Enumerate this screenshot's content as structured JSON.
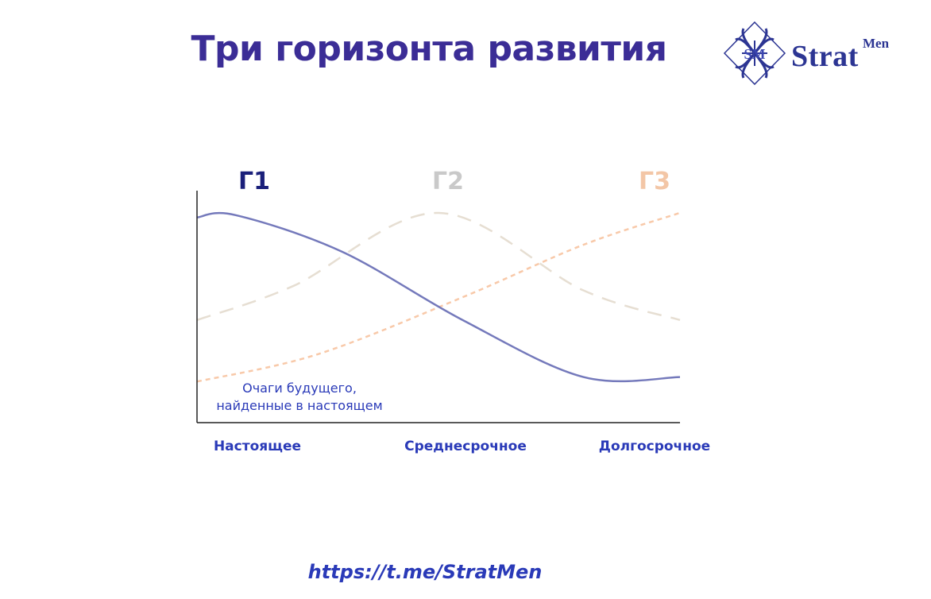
{
  "title": "Три горизонта развития",
  "logo": {
    "text": "Strat",
    "superscript": "Men",
    "emblem_letters": "SM",
    "color": "#2c3593"
  },
  "chart_data": {
    "type": "line",
    "x_categories": [
      "Настоящее",
      "Среднесрочное",
      "Долгосрочное"
    ],
    "series": [
      {
        "name": "Г1",
        "style": "solid",
        "color": "#7479bb",
        "label_color": "#1a1f7a",
        "points": [
          [
            0.0,
            0.9
          ],
          [
            0.08,
            0.91
          ],
          [
            0.3,
            0.75
          ],
          [
            0.55,
            0.45
          ],
          [
            0.8,
            0.2
          ],
          [
            1.0,
            0.2
          ]
        ]
      },
      {
        "name": "Г2",
        "style": "long-dash",
        "color": "#e6ded2",
        "label_color": "#c9c9c9",
        "points": [
          [
            0.0,
            0.45
          ],
          [
            0.2,
            0.6
          ],
          [
            0.5,
            0.92
          ],
          [
            0.8,
            0.58
          ],
          [
            1.0,
            0.45
          ]
        ]
      },
      {
        "name": "Г3",
        "style": "short-dash",
        "color": "#f8c9a9",
        "label_color": "#f3c6a6",
        "points": [
          [
            0.0,
            0.18
          ],
          [
            0.25,
            0.3
          ],
          [
            0.55,
            0.55
          ],
          [
            0.8,
            0.78
          ],
          [
            1.0,
            0.92
          ]
        ]
      }
    ],
    "annotation": {
      "lines": [
        "Очаги будущего,",
        "найденные в настоящем"
      ]
    }
  },
  "footer": {
    "url": "https://t.me/StratMen"
  }
}
